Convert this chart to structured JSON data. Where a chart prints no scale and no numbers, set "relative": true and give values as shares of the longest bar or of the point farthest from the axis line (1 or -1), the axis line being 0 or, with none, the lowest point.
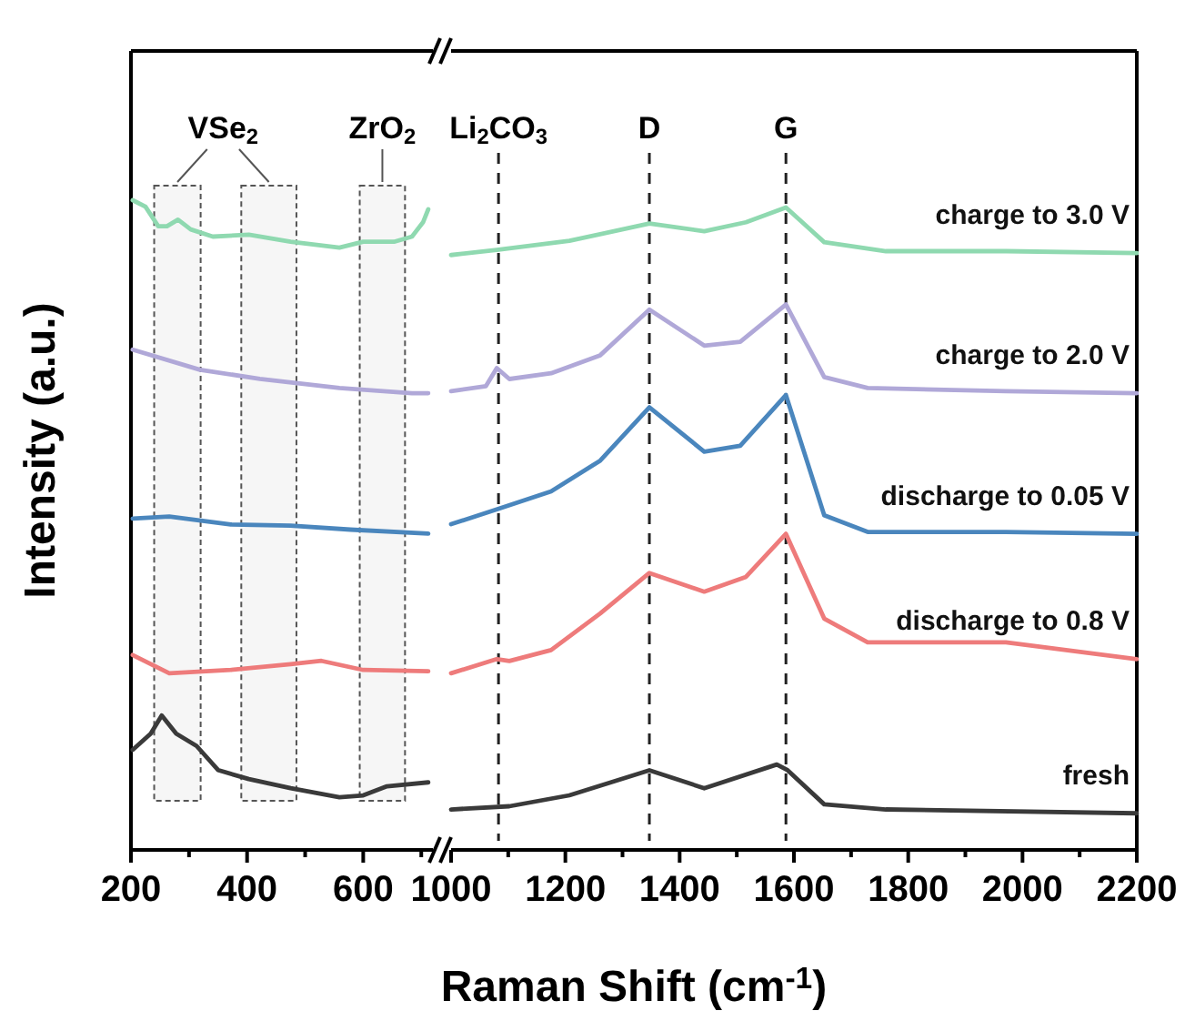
{
  "chart_data": [
    {
      "type": "line",
      "relative": true,
      "ylabel": "Intensity (a.u.)",
      "tick_labels": "x",
      "xlim": [
        200,
        720
      ],
      "xticks": [
        200,
        {
          "value": 300,
          "label": null
        },
        400,
        {
          "value": 500,
          "label": null
        },
        600,
        {
          "value": 700,
          "label": null
        }
      ],
      "bands": [
        {
          "axis": "x",
          "from": 240,
          "to": 320,
          "label": "VSe$_{2}$",
          "color": "#555555"
        },
        {
          "axis": "x",
          "from": 390,
          "to": 485,
          "label": null,
          "color": "#555555"
        },
        {
          "axis": "x",
          "from": 594,
          "to": 672,
          "label": "ZrO$_{2}$",
          "color": "#555555"
        }
      ],
      "series": [
        {
          "color": "#8fd9b0",
          "x": [
            203,
            225,
            247,
            262,
            281,
            303,
            341,
            403,
            475,
            559,
            600,
            653,
            684,
            703,
            712
          ],
          "values": [
            1.0,
            0.99,
            0.96,
            0.96,
            0.97,
            0.955,
            0.944,
            0.947,
            0.936,
            0.927,
            0.936,
            0.936,
            0.944,
            0.966,
            0.986
          ]
        },
        {
          "color": "#b0a8d8",
          "x": [
            203,
            319,
            422,
            559,
            684,
            712
          ],
          "values": [
            0.77,
            0.739,
            0.725,
            0.711,
            0.703,
            0.703
          ]
        },
        {
          "color": "#4a86bd",
          "x": [
            203,
            266,
            372,
            475,
            578,
            712
          ],
          "values": [
            0.51,
            0.513,
            0.501,
            0.499,
            0.493,
            0.487
          ]
        },
        {
          "color": "#ee7b7b",
          "x": [
            203,
            266,
            372,
            475,
            528,
            600,
            712
          ],
          "values": [
            0.3,
            0.272,
            0.277,
            0.286,
            0.291,
            0.277,
            0.275
          ]
        },
        {
          "color": "#3a3a3a",
          "x": [
            203,
            234,
            253,
            278,
            313,
            350,
            403,
            475,
            559,
            600,
            641,
            712
          ],
          "values": [
            0.154,
            0.179,
            0.207,
            0.179,
            0.16,
            0.123,
            0.109,
            0.095,
            0.081,
            0.084,
            0.098,
            0.104
          ]
        }
      ]
    },
    {
      "type": "line",
      "relative": true,
      "xlabel": "Raman Shift (cm$^{-1}$)",
      "tick_labels": "x",
      "xlim": [
        1000,
        2200
      ],
      "xticks": [
        1000,
        {
          "value": 1100,
          "label": null
        },
        1200,
        {
          "value": 1300,
          "label": null
        },
        1400,
        {
          "value": 1500,
          "label": null
        },
        1600,
        {
          "value": 1700,
          "label": null
        },
        1800,
        {
          "value": 1900,
          "label": null
        },
        2000,
        {
          "value": 2100,
          "label": null
        },
        2200
      ],
      "ref_lines": [
        {
          "axis": "x",
          "value": 1083,
          "label": "Li$_{2}$CO$_{3}$",
          "line_style": "dashed",
          "color": "#222222"
        },
        {
          "axis": "x",
          "value": 1347,
          "label": "D",
          "line_style": "dashed",
          "color": "#222222"
        },
        {
          "axis": "x",
          "value": 1586,
          "label": "G",
          "line_style": "dashed",
          "color": "#222222"
        }
      ],
      "series": [
        {
          "name": "charge to 3.0 V",
          "color": "#8fd9b0",
          "x": [
            1000,
            1080,
            1207,
            1347,
            1443,
            1516,
            1586,
            1653,
            1761,
            1971,
            2200
          ],
          "values": [
            0.926,
            0.934,
            0.948,
            0.975,
            0.963,
            0.977,
            1.0,
            0.946,
            0.932,
            0.932,
            0.929
          ]
        },
        {
          "name": "charge to 2.0 V",
          "color": "#b0a8d8",
          "x": [
            1000,
            1061,
            1080,
            1102,
            1175,
            1261,
            1347,
            1443,
            1506,
            1586,
            1653,
            1729,
            1971,
            2200
          ],
          "values": [
            0.714,
            0.722,
            0.75,
            0.733,
            0.742,
            0.77,
            0.841,
            0.785,
            0.791,
            0.849,
            0.736,
            0.719,
            0.714,
            0.711
          ]
        },
        {
          "name": "discharge to 0.05 V",
          "color": "#4a86bd",
          "x": [
            1000,
            1080,
            1175,
            1261,
            1347,
            1443,
            1506,
            1586,
            1653,
            1729,
            1971,
            2200
          ],
          "values": [
            0.507,
            0.53,
            0.558,
            0.606,
            0.689,
            0.62,
            0.629,
            0.708,
            0.521,
            0.495,
            0.495,
            0.492
          ]
        },
        {
          "name": "discharge to 0.8 V",
          "color": "#ee7b7b",
          "x": [
            1000,
            1080,
            1102,
            1175,
            1261,
            1347,
            1443,
            1516,
            1586,
            1653,
            1729,
            1971,
            2200
          ],
          "values": [
            0.275,
            0.297,
            0.294,
            0.311,
            0.368,
            0.431,
            0.402,
            0.425,
            0.492,
            0.36,
            0.323,
            0.323,
            0.297
          ]
        },
        {
          "name": "fresh",
          "color": "#3a3a3a",
          "x": [
            1000,
            1102,
            1207,
            1347,
            1443,
            1570,
            1589,
            1653,
            1761,
            2200
          ],
          "values": [
            0.063,
            0.068,
            0.085,
            0.124,
            0.096,
            0.133,
            0.124,
            0.071,
            0.063,
            0.057
          ]
        }
      ]
    }
  ]
}
